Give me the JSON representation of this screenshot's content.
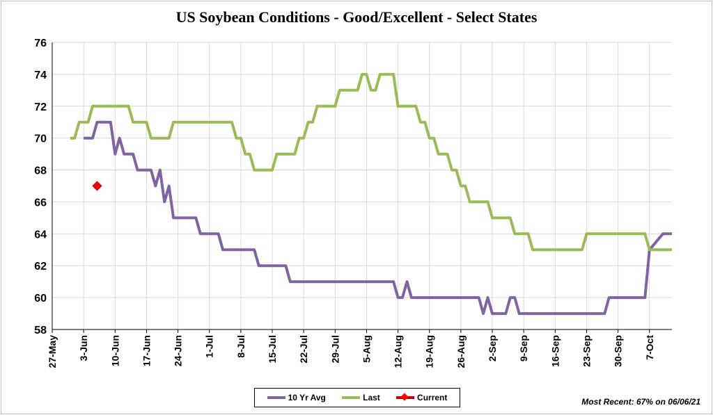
{
  "title": "US Soybean Conditions - Good/Excellent - Select States",
  "footnote": "Most Recent: 67% on 06/06/21",
  "colors": {
    "avg": "#8064a2",
    "last": "#9bbb59",
    "current": "#ff0000",
    "grid": "#d9d9d9"
  },
  "legend": [
    {
      "label": "10 Yr Avg",
      "color": "#8064a2",
      "marker": "line"
    },
    {
      "label": "Last",
      "color": "#9bbb59",
      "marker": "line"
    },
    {
      "label": "Current",
      "color": "#ff0000",
      "marker": "diamond"
    }
  ],
  "chart_data": {
    "type": "line",
    "title": "US Soybean Conditions - Good/Excellent - Select States",
    "ylim": [
      58,
      76
    ],
    "yticks": [
      58,
      60,
      62,
      64,
      66,
      68,
      70,
      72,
      74,
      76
    ],
    "xlim": [
      "2021-05-27",
      "2021-10-12"
    ],
    "xticks": [
      "27-May",
      "3-Jun",
      "10-Jun",
      "17-Jun",
      "24-Jun",
      "1-Jul",
      "8-Jul",
      "15-Jul",
      "22-Jul",
      "29-Jul",
      "5-Aug",
      "12-Aug",
      "19-Aug",
      "26-Aug",
      "2-Sep",
      "9-Sep",
      "16-Sep",
      "23-Sep",
      "30-Sep",
      "7-Oct"
    ],
    "grid": true,
    "legend_position": "bottom",
    "series": [
      {
        "name": "10 Yr Avg",
        "color": "#8064a2",
        "points": [
          [
            "2021-06-03",
            70
          ],
          [
            "2021-06-05",
            70
          ],
          [
            "2021-06-06",
            71
          ],
          [
            "2021-06-09",
            71
          ],
          [
            "2021-06-10",
            69
          ],
          [
            "2021-06-11",
            70
          ],
          [
            "2021-06-12",
            69
          ],
          [
            "2021-06-14",
            69
          ],
          [
            "2021-06-15",
            68
          ],
          [
            "2021-06-18",
            68
          ],
          [
            "2021-06-19",
            67
          ],
          [
            "2021-06-20",
            68
          ],
          [
            "2021-06-21",
            66
          ],
          [
            "2021-06-22",
            67
          ],
          [
            "2021-06-23",
            65
          ],
          [
            "2021-06-28",
            65
          ],
          [
            "2021-06-29",
            64
          ],
          [
            "2021-07-03",
            64
          ],
          [
            "2021-07-04",
            63
          ],
          [
            "2021-07-11",
            63
          ],
          [
            "2021-07-12",
            62
          ],
          [
            "2021-07-18",
            62
          ],
          [
            "2021-07-19",
            61
          ],
          [
            "2021-08-11",
            61
          ],
          [
            "2021-08-12",
            60
          ],
          [
            "2021-08-13",
            60
          ],
          [
            "2021-08-14",
            61
          ],
          [
            "2021-08-15",
            60
          ],
          [
            "2021-08-30",
            60
          ],
          [
            "2021-08-31",
            59
          ],
          [
            "2021-09-01",
            60
          ],
          [
            "2021-09-02",
            59
          ],
          [
            "2021-09-05",
            59
          ],
          [
            "2021-09-06",
            60
          ],
          [
            "2021-09-07",
            60
          ],
          [
            "2021-09-08",
            59
          ],
          [
            "2021-09-27",
            59
          ],
          [
            "2021-09-28",
            60
          ],
          [
            "2021-10-06",
            60
          ],
          [
            "2021-10-07",
            63
          ],
          [
            "2021-10-10",
            64
          ],
          [
            "2021-10-12",
            64
          ]
        ]
      },
      {
        "name": "Last",
        "color": "#9bbb59",
        "points": [
          [
            "2021-05-31",
            70
          ],
          [
            "2021-06-01",
            70
          ],
          [
            "2021-06-02",
            71
          ],
          [
            "2021-06-04",
            71
          ],
          [
            "2021-06-05",
            72
          ],
          [
            "2021-06-13",
            72
          ],
          [
            "2021-06-14",
            71
          ],
          [
            "2021-06-17",
            71
          ],
          [
            "2021-06-18",
            70
          ],
          [
            "2021-06-22",
            70
          ],
          [
            "2021-06-23",
            71
          ],
          [
            "2021-07-06",
            71
          ],
          [
            "2021-07-07",
            70
          ],
          [
            "2021-07-08",
            70
          ],
          [
            "2021-07-09",
            69
          ],
          [
            "2021-07-10",
            69
          ],
          [
            "2021-07-11",
            68
          ],
          [
            "2021-07-15",
            68
          ],
          [
            "2021-07-16",
            69
          ],
          [
            "2021-07-20",
            69
          ],
          [
            "2021-07-21",
            70
          ],
          [
            "2021-07-22",
            70
          ],
          [
            "2021-07-23",
            71
          ],
          [
            "2021-07-24",
            71
          ],
          [
            "2021-07-25",
            72
          ],
          [
            "2021-07-29",
            72
          ],
          [
            "2021-07-30",
            73
          ],
          [
            "2021-08-03",
            73
          ],
          [
            "2021-08-04",
            74
          ],
          [
            "2021-08-05",
            74
          ],
          [
            "2021-08-06",
            73
          ],
          [
            "2021-08-07",
            73
          ],
          [
            "2021-08-08",
            74
          ],
          [
            "2021-08-11",
            74
          ],
          [
            "2021-08-12",
            72
          ],
          [
            "2021-08-16",
            72
          ],
          [
            "2021-08-17",
            71
          ],
          [
            "2021-08-18",
            71
          ],
          [
            "2021-08-19",
            70
          ],
          [
            "2021-08-20",
            70
          ],
          [
            "2021-08-21",
            69
          ],
          [
            "2021-08-23",
            69
          ],
          [
            "2021-08-24",
            68
          ],
          [
            "2021-08-25",
            68
          ],
          [
            "2021-08-26",
            67
          ],
          [
            "2021-08-27",
            67
          ],
          [
            "2021-08-28",
            66
          ],
          [
            "2021-09-01",
            66
          ],
          [
            "2021-09-02",
            65
          ],
          [
            "2021-09-06",
            65
          ],
          [
            "2021-09-07",
            64
          ],
          [
            "2021-09-10",
            64
          ],
          [
            "2021-09-11",
            63
          ],
          [
            "2021-09-22",
            63
          ],
          [
            "2021-09-23",
            64
          ],
          [
            "2021-10-06",
            64
          ],
          [
            "2021-10-07",
            63
          ],
          [
            "2021-10-12",
            63
          ]
        ]
      },
      {
        "name": "Current",
        "color": "#ff0000",
        "marker": "diamond",
        "points": [
          [
            "2021-06-06",
            67
          ]
        ]
      }
    ]
  }
}
